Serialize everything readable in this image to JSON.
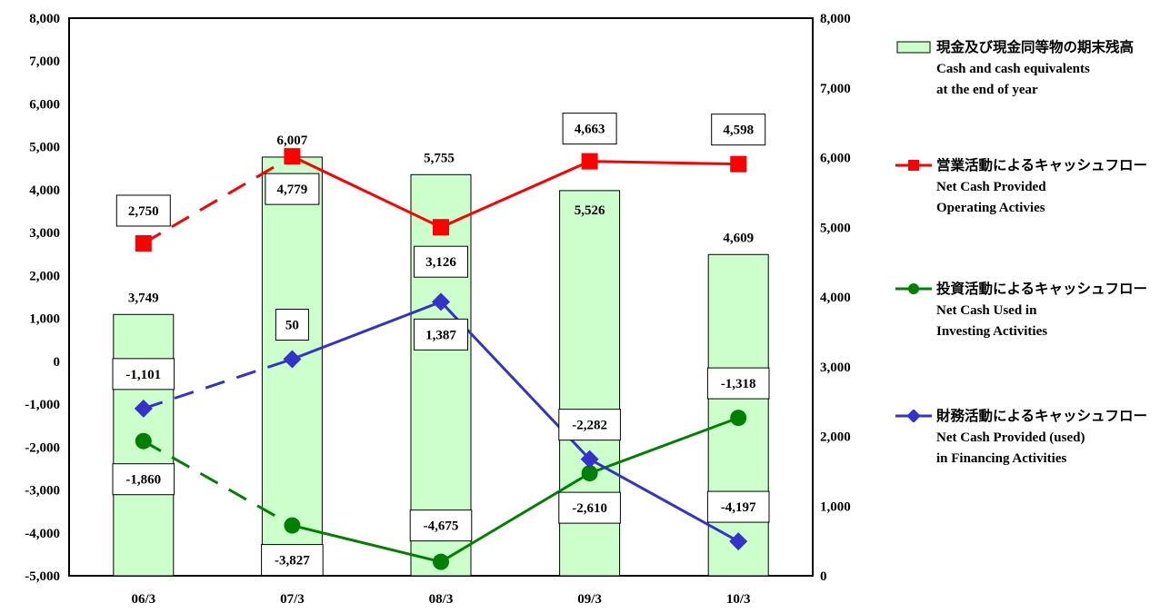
{
  "chart_data": {
    "type": "bar",
    "categories": [
      "06/3",
      "07/3",
      "08/3",
      "09/3",
      "10/3"
    ],
    "left_axis": {
      "ylim": [
        -5000,
        8000
      ],
      "ticks": [
        "8,000",
        "7,000",
        "6,000",
        "5,000",
        "4,000",
        "3,000",
        "2,000",
        "1,000",
        "0",
        "-1,000",
        "-2,000",
        "-3,000",
        "-4,000",
        "-5,000"
      ]
    },
    "right_axis": {
      "ylim": [
        0,
        8000
      ],
      "ticks": [
        "8,000",
        "7,000",
        "6,000",
        "5,000",
        "4,000",
        "3,000",
        "2,000",
        "1,000",
        "0"
      ]
    },
    "grid": false,
    "legend_position": "right",
    "series": [
      {
        "name": "現金及び現金同等物の期末残高",
        "name_en_line1": "Cash and cash equivalents",
        "name_en_line2": "at the end of year",
        "kind": "bar",
        "axis": "right",
        "color": "#ccffcc",
        "values": [
          3749,
          6007,
          5755,
          5526,
          4609
        ],
        "labels": [
          "3,749",
          "6,007",
          "5,755",
          "5,526",
          "4,609"
        ]
      },
      {
        "name": "営業活動によるキャッシュフロー",
        "name_en_line1": "Net Cash Provided",
        "name_en_line2": "Operating Activies",
        "kind": "line",
        "axis": "left",
        "color": "#ff0000",
        "marker": "square",
        "values": [
          2750,
          4779,
          3126,
          4663,
          4598
        ],
        "labels": [
          "2,750",
          "4,779",
          "3,126",
          "4,663",
          "4,598"
        ]
      },
      {
        "name": "投資活動によるキャッシュフロー",
        "name_en_line1": "Net Cash Used in",
        "name_en_line2": "Investing Activities",
        "kind": "line",
        "axis": "left",
        "color": "#008000",
        "marker": "circle",
        "values": [
          -1860,
          -3827,
          -4675,
          -2610,
          -1318
        ],
        "labels": [
          "-1,860",
          "-3,827",
          "-4,675",
          "-2,610",
          "-1,318"
        ]
      },
      {
        "name": "財務活動によるキャッシュフロー",
        "name_en_line1": "Net Cash Provided (used)",
        "name_en_line2": "in Financing Activities",
        "kind": "line",
        "axis": "left",
        "color": "#3333cc",
        "marker": "diamond",
        "values": [
          -1101,
          50,
          1387,
          -2282,
          -4197
        ],
        "labels": [
          "-1,101",
          "50",
          "1,387",
          "-2,282",
          "-4,197"
        ]
      }
    ]
  }
}
